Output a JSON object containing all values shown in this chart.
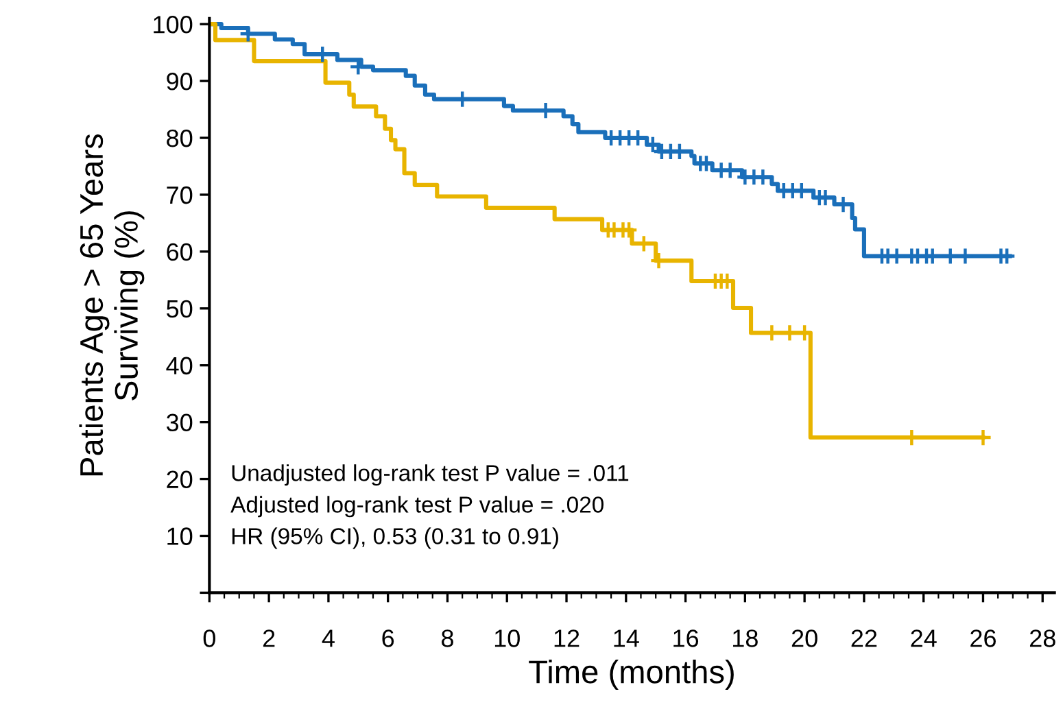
{
  "chart_data": {
    "type": "step",
    "xlabel": "Time (months)",
    "ylabel": "Patients Age > 65 Years\nSurviving (%)",
    "xlim": [
      0,
      28.4
    ],
    "ylim": [
      0,
      101
    ],
    "xticks": [
      0,
      2,
      4,
      6,
      8,
      10,
      12,
      14,
      16,
      18,
      20,
      22,
      24,
      26,
      28
    ],
    "yticks": [
      {
        "value": 0,
        "label": null
      },
      10,
      20,
      30,
      40,
      50,
      60,
      70,
      80,
      90,
      100
    ],
    "grid": false,
    "legend": false,
    "annotations": [
      "Unadjusted log-rank test P value = .011",
      "Adjusted log-rank test P value = .020",
      "HR (95% CI), 0.53 (0.31 to 0.91)"
    ],
    "series": [
      {
        "color": "#1a6fba",
        "x": [
          0,
          0.4,
          1.3,
          2.2,
          2.8,
          3.2,
          4.3,
          5.1,
          5.5,
          6.6,
          6.9,
          7.25,
          7.55,
          9.9,
          10.2,
          11.9,
          12.2,
          12.4,
          13.3,
          14.7,
          15.1,
          16.2,
          16.3,
          16.9,
          17.9,
          18.9,
          19.1,
          20.3,
          21.0,
          21.6,
          21.7,
          22.0,
          26.9
        ],
        "values": [
          100,
          99.3,
          98.3,
          97.3,
          96.5,
          94.7,
          93.7,
          92.5,
          91.9,
          90.9,
          89.2,
          87.6,
          86.8,
          85.6,
          84.8,
          83.8,
          82.4,
          81.0,
          80.0,
          78.8,
          77.6,
          76.8,
          75.5,
          74.3,
          73.1,
          71.9,
          70.7,
          69.5,
          68.3,
          65.9,
          63.9,
          59.2,
          59.2
        ]
      },
      {
        "color": "#e8b400",
        "x": [
          0,
          0.2,
          1.5,
          3.9,
          4.7,
          4.85,
          5.6,
          5.9,
          6.1,
          6.25,
          6.55,
          6.9,
          7.65,
          9.3,
          11.6,
          13.2,
          14.2,
          15.0,
          16.2,
          17.6,
          18.2,
          20.2,
          26.0
        ],
        "values": [
          100,
          97.2,
          93.5,
          89.7,
          87.6,
          85.5,
          83.8,
          81.6,
          79.6,
          78.0,
          73.8,
          71.7,
          69.7,
          67.7,
          65.7,
          63.8,
          61.4,
          58.4,
          54.8,
          50.1,
          45.7,
          27.3,
          27.3
        ]
      },
      {
        "type": "scatter",
        "marker": "cross",
        "color": "#1a6fba",
        "x": [
          1.3,
          3.8,
          5.0,
          8.5,
          11.3,
          13.5,
          13.8,
          14.1,
          14.4,
          14.9,
          15.2,
          15.5,
          15.8,
          16.5,
          16.7,
          17.2,
          17.5,
          18.0,
          18.3,
          18.6,
          19.3,
          19.6,
          19.9,
          20.5,
          20.7,
          21.3,
          22.6,
          22.8,
          23.1,
          23.6,
          23.8,
          24.1,
          24.3,
          24.9,
          25.4,
          26.6,
          26.8
        ],
        "values": [
          98.3,
          94.7,
          92.5,
          86.8,
          84.8,
          80.0,
          80.0,
          80.0,
          80.0,
          78.8,
          77.6,
          77.6,
          77.6,
          75.5,
          75.5,
          74.3,
          74.3,
          73.1,
          73.1,
          73.1,
          70.7,
          70.7,
          70.7,
          69.5,
          69.5,
          68.3,
          59.2,
          59.2,
          59.2,
          59.2,
          59.2,
          59.2,
          59.2,
          59.2,
          59.2,
          59.2,
          59.2
        ]
      },
      {
        "type": "scatter",
        "marker": "cross",
        "color": "#e8b400",
        "x": [
          13.4,
          13.6,
          13.9,
          14.1,
          14.6,
          15.1,
          17.0,
          17.2,
          17.4,
          18.9,
          19.5,
          20.0,
          23.6,
          26.0
        ],
        "values": [
          63.8,
          63.8,
          63.8,
          63.8,
          61.4,
          58.4,
          54.8,
          54.8,
          54.8,
          45.7,
          45.7,
          45.7,
          27.3,
          27.3
        ]
      }
    ]
  }
}
